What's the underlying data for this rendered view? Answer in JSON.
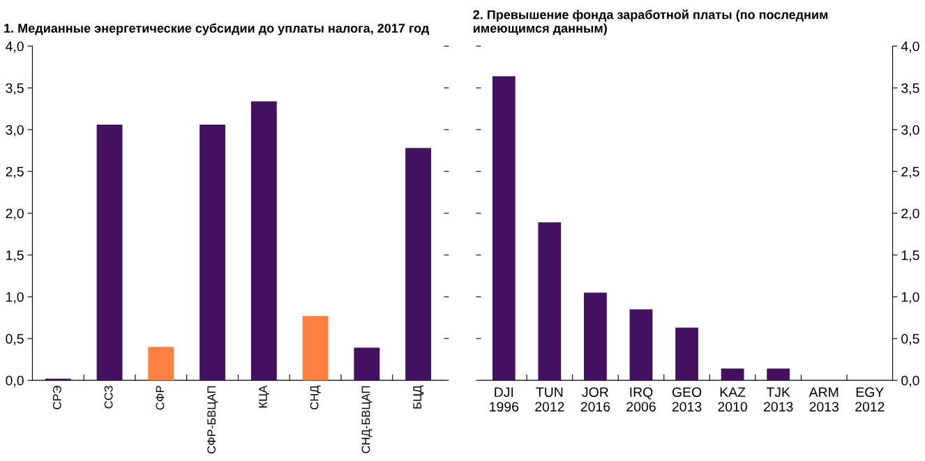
{
  "chart_data": [
    {
      "type": "bar",
      "title": "1. Медианные энергетические субсидии до уплаты налога, 2017 год",
      "categories": [
        "СРЭ",
        "ССЗ",
        "СФР",
        "СФР-БВЦАП",
        "КЦА",
        "СНД",
        "СНД-БВЦАП",
        "БЦД"
      ],
      "values": [
        0.02,
        3.06,
        0.4,
        3.06,
        3.34,
        0.77,
        0.39,
        2.78
      ],
      "colors": [
        "#43115f",
        "#43115f",
        "#ff7f41",
        "#43115f",
        "#43115f",
        "#ff7f41",
        "#43115f",
        "#43115f"
      ],
      "ylim": [
        0,
        4
      ],
      "yticks": [
        {
          "value": 0,
          "label": "0,0"
        },
        {
          "value": 0.5,
          "label": "0,5"
        },
        {
          "value": 1,
          "label": "1,0"
        },
        {
          "value": 1.5,
          "label": "1,5"
        },
        {
          "value": 2,
          "label": "2,0"
        },
        {
          "value": 2.5,
          "label": "2,5"
        },
        {
          "value": 3,
          "label": "3,0"
        },
        {
          "value": 3.5,
          "label": "3,5"
        },
        {
          "value": 4,
          "label": "4,0"
        }
      ],
      "grid": false,
      "legend": false
    },
    {
      "type": "bar",
      "title": "2. Превышение фонда заработной платы (по последним\nимеющимся данным)",
      "categories": [
        "DJI\n1996",
        "TUN\n2012",
        "JOR\n2016",
        "IRQ\n2006",
        "GEO\n2013",
        "KAZ\n2010",
        "TJK\n2013",
        "ARM\n2013",
        "EGY\n2012"
      ],
      "values": [
        3.64,
        1.89,
        1.05,
        0.85,
        0.63,
        0.14,
        0.14,
        0,
        0
      ],
      "colors": [
        "#43115f",
        "#43115f",
        "#43115f",
        "#43115f",
        "#43115f",
        "#43115f",
        "#43115f",
        "#43115f",
        "#43115f"
      ],
      "ylim": [
        0,
        4
      ],
      "yticks": [
        {
          "value": 0,
          "label": "0,0"
        },
        {
          "value": 0.5,
          "label": "0,5"
        },
        {
          "value": 1,
          "label": "1,0"
        },
        {
          "value": 1.5,
          "label": "1,5"
        },
        {
          "value": 2,
          "label": "2,0"
        },
        {
          "value": 2.5,
          "label": "2,5"
        },
        {
          "value": 3,
          "label": "3,0"
        },
        {
          "value": 3.5,
          "label": "3,5"
        },
        {
          "value": 4,
          "label": "4,0"
        }
      ],
      "grid": false,
      "legend": false
    }
  ]
}
